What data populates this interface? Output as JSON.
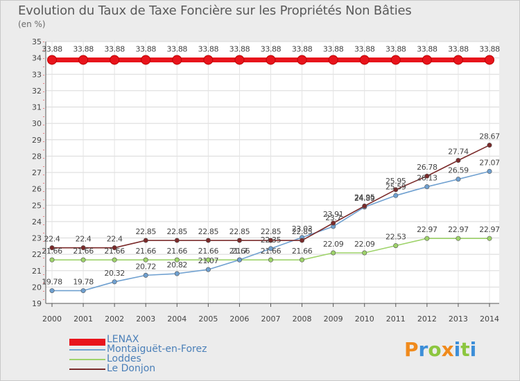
{
  "chart_data": {
    "type": "line",
    "title": "Evolution du Taux de Taxe Foncière sur les Propriétés Non Bâties",
    "ylabel": "(en %)",
    "xlabel": "",
    "ylim": [
      19,
      35
    ],
    "yticks": [
      "19",
      "20",
      "21",
      "22",
      "23",
      "24",
      "25",
      "26",
      "27",
      "28",
      "29",
      "30",
      "31",
      "32",
      "33",
      "34",
      "35"
    ],
    "categories": [
      "2000",
      "2001",
      "2002",
      "2003",
      "2004",
      "2005",
      "2006",
      "2007",
      "2008",
      "2009",
      "2010",
      "2011",
      "2012",
      "2013",
      "2014"
    ],
    "series": [
      {
        "name": "LENAX",
        "color": "#e8141c",
        "values": [
          33.88,
          33.88,
          33.88,
          33.88,
          33.88,
          33.88,
          33.88,
          33.88,
          33.88,
          33.88,
          33.88,
          33.88,
          33.88,
          33.88,
          33.88
        ],
        "labels": [
          "33.88",
          "33.88",
          "33.88",
          "33.88",
          "33.88",
          "33.88",
          "33.88",
          "33.88",
          "33.88",
          "33.88",
          "33.88",
          "33.88",
          "33.88",
          "33.88",
          "33.88"
        ]
      },
      {
        "name": "Montaiguët-en-Forez",
        "color": "#6fa0d0",
        "values": [
          19.78,
          19.78,
          20.32,
          20.72,
          20.82,
          21.07,
          21.66,
          22.35,
          23.03,
          23.7,
          24.89,
          25.59,
          26.13,
          26.59,
          27.07
        ],
        "labels": [
          "19.78",
          "19.78",
          "20.32",
          "20.72",
          "20.82",
          "21.07",
          "21.7",
          "22.35",
          "23.03",
          "23.7",
          "24.89",
          "25.59",
          "26.13",
          "26.59",
          "27.07"
        ]
      },
      {
        "name": "Loddes",
        "color": "#9ed36a",
        "values": [
          21.66,
          21.66,
          21.66,
          21.66,
          21.66,
          21.66,
          21.66,
          21.66,
          21.66,
          22.09,
          22.09,
          22.53,
          22.97,
          22.97,
          22.97
        ],
        "labels": [
          "21.66",
          "21.66",
          "21.66",
          "21.66",
          "21.66",
          "21.66",
          "21.66",
          "21.66",
          "21.66",
          "22.09",
          "22.09",
          "22.53",
          "22.97",
          "22.97",
          "22.97"
        ]
      },
      {
        "name": "Le Donjon",
        "color": "#7a2a2a",
        "values": [
          22.4,
          22.4,
          22.4,
          22.85,
          22.85,
          22.85,
          22.85,
          22.85,
          22.85,
          23.91,
          24.95,
          25.95,
          26.78,
          27.74,
          28.67
        ],
        "labels": [
          "22.4",
          "22.4",
          "22.4",
          "22.85",
          "22.85",
          "22.85",
          "22.85",
          "22.85",
          "22.85",
          "23.91",
          "24.95",
          "25.95",
          "26.78",
          "27.74",
          "28.67"
        ]
      }
    ]
  },
  "logo": {
    "letters": [
      "P",
      "r",
      "o",
      "x",
      "i",
      "t",
      "i"
    ]
  }
}
